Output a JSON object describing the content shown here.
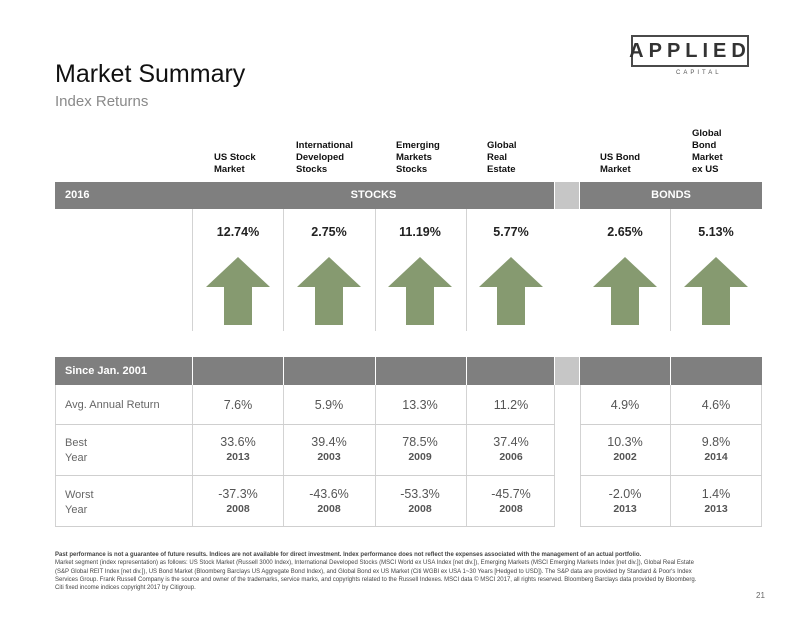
{
  "title": "Market Summary",
  "subtitle": "Index Returns",
  "logo": {
    "main": "APPLIED",
    "sub": "CAPITAL"
  },
  "columns": [
    {
      "lines": [
        "US Stock",
        "Market"
      ]
    },
    {
      "lines": [
        "International",
        "Developed",
        "Stocks"
      ]
    },
    {
      "lines": [
        "Emerging",
        "Markets",
        "Stocks"
      ]
    },
    {
      "lines": [
        "Global",
        "Real",
        "Estate"
      ]
    },
    {
      "lines": [
        "US Bond",
        "Market"
      ]
    },
    {
      "lines": [
        "Global",
        "Bond",
        "Market",
        "ex US"
      ]
    }
  ],
  "band": {
    "year": "2016",
    "stocks": "STOCKS",
    "bonds": "BONDS"
  },
  "returns_2016": [
    "12.74%",
    "2.75%",
    "11.19%",
    "5.77%",
    "2.65%",
    "5.13%"
  ],
  "arrow_color": "#869a70",
  "since": {
    "header": "Since Jan. 2001",
    "avg_label": "Avg. Annual Return",
    "avg": [
      "7.6%",
      "5.9%",
      "13.3%",
      "11.2%",
      "4.9%",
      "4.6%"
    ],
    "best_label_1": "Best",
    "best_label_2": "Year",
    "best": [
      {
        "value": "33.6%",
        "year": "2013"
      },
      {
        "value": "39.4%",
        "year": "2003"
      },
      {
        "value": "78.5%",
        "year": "2009"
      },
      {
        "value": "37.4%",
        "year": "2006"
      },
      {
        "value": "10.3%",
        "year": "2002"
      },
      {
        "value": "9.8%",
        "year": "2014"
      }
    ],
    "worst_label_1": "Worst",
    "worst_label_2": "Year",
    "worst": [
      {
        "value": "-37.3%",
        "year": "2008"
      },
      {
        "value": "-43.6%",
        "year": "2008"
      },
      {
        "value": "-53.3%",
        "year": "2008"
      },
      {
        "value": "-45.7%",
        "year": "2008"
      },
      {
        "value": "-2.0%",
        "year": "2013"
      },
      {
        "value": "1.4%",
        "year": "2013"
      }
    ]
  },
  "footer": {
    "bold": "Past performance is not a guarantee of future results. Indices are not available for direct investment. Index performance does not reflect the expenses associated with the management of an actual portfolio.",
    "text": "Market segment (index representation) as follows: US Stock Market (Russell 3000 Index), International Developed Stocks (MSCI World ex USA Index [net div.]), Emerging Markets (MSCI Emerging Markets Index [net div.]), Global Real Estate (S&P Global REIT Index [net div.]), US Bond Market (Bloomberg Barclays US Aggregate Bond Index), and Global Bond ex US Market (Citi WGBI ex USA 1~30 Years [Hedged to USD]). The S&P data are provided by Standard & Poor's Index Services Group. Frank Russell Company is the source and owner of the trademarks, service marks, and copyrights related to the Russell Indexes. MSCI data © MSCI 2017, all rights reserved. Bloomberg Barclays data provided by Bloomberg. Citi fixed income indices copyright 2017 by Citigroup."
  },
  "page_number": "21"
}
